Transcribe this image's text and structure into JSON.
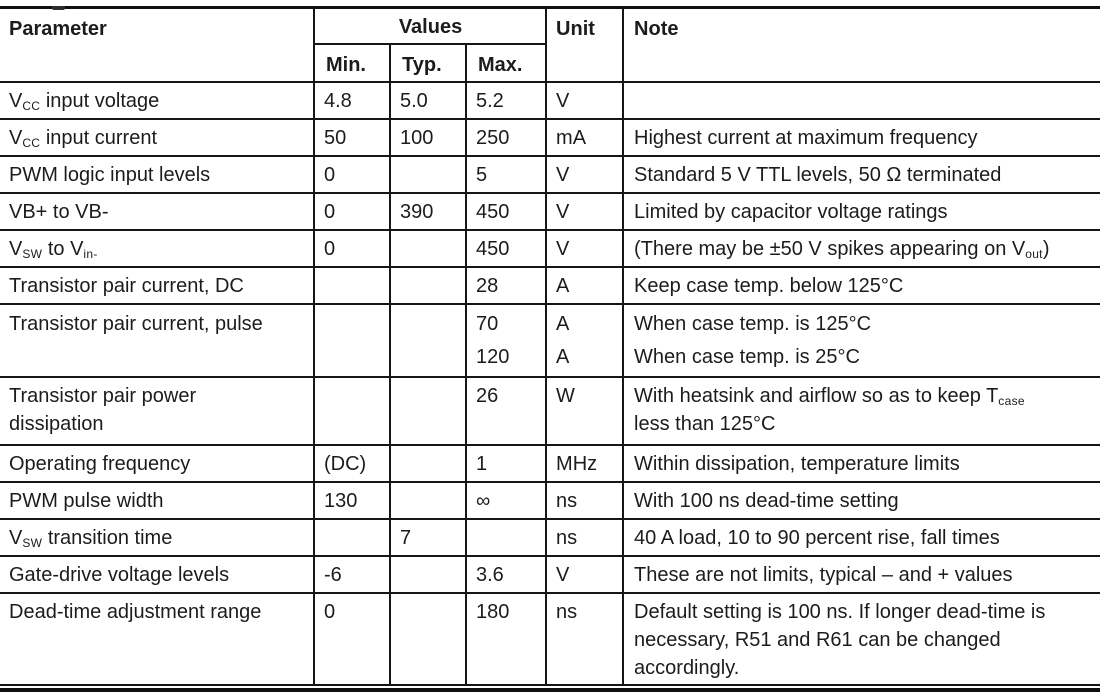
{
  "colors": {
    "background": "#ffffff",
    "text": "#1c1c1c",
    "border": "#161616"
  },
  "table": {
    "headers": {
      "parameter": "Parameter",
      "values": "Values",
      "min": "Min.",
      "typ": "Typ.",
      "max": "Max.",
      "unit": "Unit",
      "note": "Note"
    },
    "rows": [
      {
        "parameter": [
          {
            "t": "V"
          },
          {
            "s": "CC"
          },
          {
            "t": " input voltage"
          }
        ],
        "min": [
          {
            "t": "4.8"
          }
        ],
        "typ": [
          {
            "t": "5.0"
          }
        ],
        "max": [
          {
            "t": "5.2"
          }
        ],
        "unit": [
          {
            "t": "V"
          }
        ],
        "note": []
      },
      {
        "parameter": [
          {
            "t": "V"
          },
          {
            "s": "CC"
          },
          {
            "t": " input current"
          }
        ],
        "min": [
          {
            "t": "50"
          }
        ],
        "typ": [
          {
            "t": "100"
          }
        ],
        "max": [
          {
            "t": "250"
          }
        ],
        "unit": [
          {
            "t": "mA"
          }
        ],
        "note": [
          {
            "t": "Highest current at maximum frequency"
          }
        ]
      },
      {
        "parameter": [
          {
            "t": "PWM logic input levels"
          }
        ],
        "min": [
          {
            "t": "0"
          }
        ],
        "typ": [],
        "max": [
          {
            "t": "5"
          }
        ],
        "unit": [
          {
            "t": "V"
          }
        ],
        "note": [
          {
            "t": "Standard 5 V TTL levels, 50 Ω terminated"
          }
        ]
      },
      {
        "parameter": [
          {
            "t": "VB+ to VB-"
          }
        ],
        "min": [
          {
            "t": "0"
          }
        ],
        "typ": [
          {
            "t": "390"
          }
        ],
        "max": [
          {
            "t": "450"
          }
        ],
        "unit": [
          {
            "t": "V"
          }
        ],
        "note": [
          {
            "t": "Limited by capacitor voltage ratings"
          }
        ]
      },
      {
        "parameter": [
          {
            "t": "V"
          },
          {
            "s": "SW"
          },
          {
            "t": " to V"
          },
          {
            "s": "in-"
          }
        ],
        "min": [
          {
            "t": "0"
          }
        ],
        "typ": [],
        "max": [
          {
            "t": "450"
          }
        ],
        "unit": [
          {
            "t": "V"
          }
        ],
        "note": [
          {
            "t": "(There may be ±50 V spikes appearing on V"
          },
          {
            "s": "out"
          },
          {
            "t": ")"
          }
        ]
      },
      {
        "parameter": [
          {
            "t": "Transistor pair current, DC"
          }
        ],
        "min": [],
        "typ": [],
        "max": [
          {
            "t": "28"
          }
        ],
        "unit": [
          {
            "t": "A"
          }
        ],
        "note": [
          {
            "t": "Keep case temp. below 125°C"
          }
        ]
      },
      {
        "parameter": [
          {
            "t": "Transistor pair current, pulse"
          }
        ],
        "min": [],
        "typ": [],
        "max": [
          {
            "t": "70"
          },
          {
            "br": true
          },
          {
            "t": "120"
          }
        ],
        "unit": [
          {
            "t": "A"
          },
          {
            "br": true
          },
          {
            "t": "A"
          }
        ],
        "note": [
          {
            "t": "When case temp. is 125°C"
          },
          {
            "br": true
          },
          {
            "t": "When case temp. is 25°C"
          }
        ]
      },
      {
        "parameter": [
          {
            "t": "Transistor pair power"
          },
          {
            "br": true
          },
          {
            "t": "dissipation"
          }
        ],
        "min": [],
        "typ": [],
        "max": [
          {
            "t": "26"
          }
        ],
        "unit": [
          {
            "t": "W"
          }
        ],
        "note": [
          {
            "t": "With heatsink and airflow so as to keep T"
          },
          {
            "s": "case"
          },
          {
            "br": true
          },
          {
            "t": "less than 125°C"
          }
        ]
      },
      {
        "parameter": [
          {
            "t": "Operating frequency"
          }
        ],
        "min": [
          {
            "t": "(DC)"
          }
        ],
        "typ": [],
        "max": [
          {
            "t": "1"
          }
        ],
        "unit": [
          {
            "t": "MHz"
          }
        ],
        "note": [
          {
            "t": "Within dissipation, temperature limits"
          }
        ]
      },
      {
        "parameter": [
          {
            "t": "PWM pulse width"
          }
        ],
        "min": [
          {
            "t": "130"
          }
        ],
        "typ": [],
        "max": [
          {
            "t": "∞"
          }
        ],
        "unit": [
          {
            "t": "ns"
          }
        ],
        "note": [
          {
            "t": "With 100 ns dead-time setting"
          }
        ]
      },
      {
        "parameter": [
          {
            "t": "V"
          },
          {
            "s": "SW"
          },
          {
            "t": " transition time"
          }
        ],
        "min": [],
        "typ": [
          {
            "t": "7"
          }
        ],
        "max": [],
        "unit": [
          {
            "t": "ns"
          }
        ],
        "note": [
          {
            "t": "40 A load, 10 to 90 percent rise, fall times"
          }
        ]
      },
      {
        "parameter": [
          {
            "t": "Gate-drive voltage levels"
          }
        ],
        "min": [
          {
            "t": "-6"
          }
        ],
        "typ": [],
        "max": [
          {
            "t": "3.6"
          }
        ],
        "unit": [
          {
            "t": "V"
          }
        ],
        "note": [
          {
            "t": "These are not limits, typical – and + values"
          }
        ]
      },
      {
        "parameter": [
          {
            "t": "Dead-time adjustment range"
          }
        ],
        "min": [
          {
            "t": "0"
          }
        ],
        "typ": [],
        "max": [
          {
            "t": "180"
          }
        ],
        "unit": [
          {
            "t": "ns"
          }
        ],
        "note": [
          {
            "t": "Default setting is 100 ns. If longer dead-time is"
          },
          {
            "br": true
          },
          {
            "t": "necessary, R51 and R61 can be changed"
          },
          {
            "br": true
          },
          {
            "t": "accordingly."
          }
        ]
      }
    ]
  }
}
